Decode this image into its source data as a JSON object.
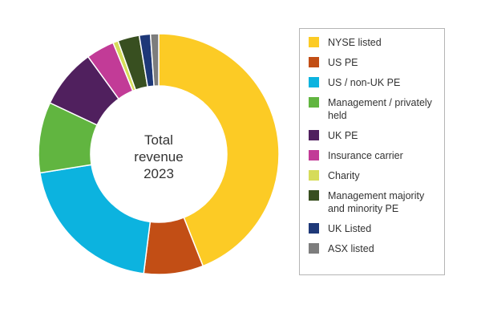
{
  "chart_data": {
    "type": "donut",
    "center_label": [
      "Total",
      "revenue",
      "2023"
    ],
    "series": [
      {
        "label": "NYSE listed",
        "value": 44.0,
        "color": "#FCCB25"
      },
      {
        "label": "US PE",
        "value": 8.0,
        "color": "#C24E15"
      },
      {
        "label": "US / non-UK PE",
        "value": 20.5,
        "color": "#0CB3DF"
      },
      {
        "label": "Management / privately held",
        "value": 9.5,
        "color": "#61B540"
      },
      {
        "label": "UK PE",
        "value": 8.0,
        "color": "#50205E"
      },
      {
        "label": "Insurance carrier",
        "value": 3.8,
        "color": "#C23B97"
      },
      {
        "label": "Charity",
        "value": 0.7,
        "color": "#D6DC5A"
      },
      {
        "label": "Management majority and minority PE",
        "value": 2.9,
        "color": "#384F20"
      },
      {
        "label": "UK Listed",
        "value": 1.5,
        "color": "#1E3878"
      },
      {
        "label": "ASX listed",
        "value": 1.1,
        "color": "#7D7D7D"
      }
    ]
  }
}
